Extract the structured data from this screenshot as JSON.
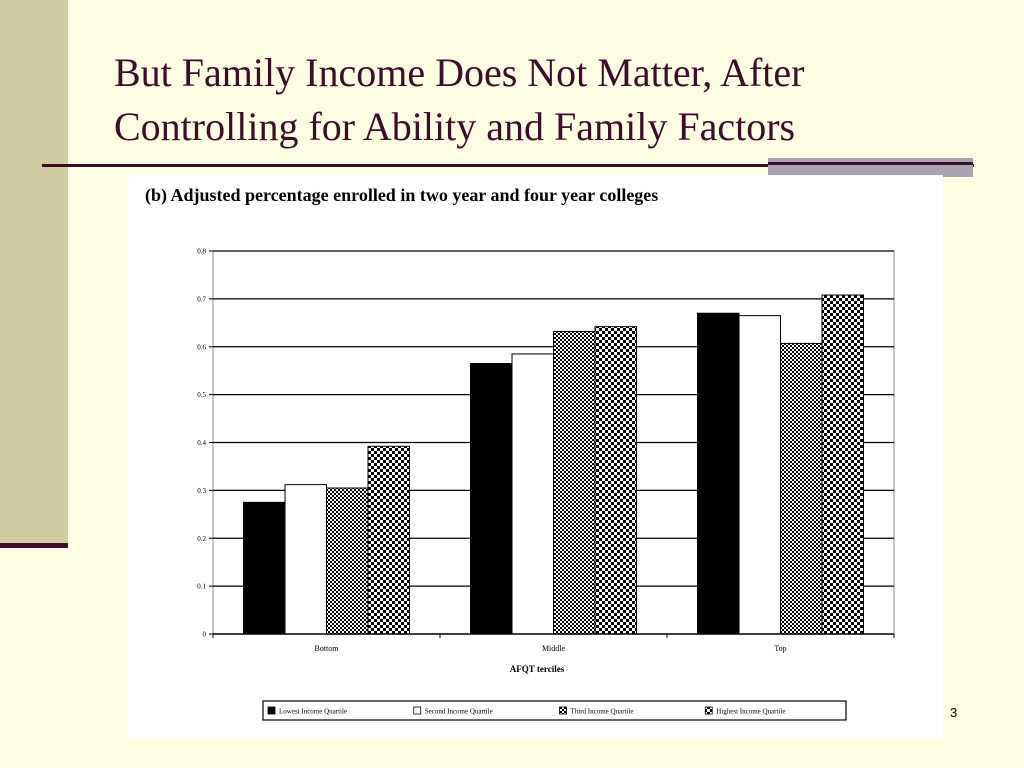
{
  "slide": {
    "title_line1": "But Family Income Does Not Matter, After",
    "title_line2": "Controlling for Ability and Family Factors",
    "slide_number": "3"
  },
  "colors": {
    "title": "#3F0B2B",
    "background": "#FEFEE2",
    "left_bar": "#CDCD9F"
  },
  "chart_data": {
    "type": "bar",
    "title": "(b) Adjusted percentage enrolled in two year and four year colleges",
    "xlabel": "AFQT terciles",
    "ylabel": "",
    "categories": [
      "Bottom",
      "Middle",
      "Top"
    ],
    "ylim": [
      0,
      0.8
    ],
    "yticks": [
      "0",
      "0.1",
      "0.2",
      "0.3",
      "0.4",
      "0.5",
      "0.6",
      "0.7",
      "0.8"
    ],
    "grid": true,
    "legend_position": "bottom",
    "series": [
      {
        "name": "Lowest Income Quartile",
        "values": [
          0.275,
          0.565,
          0.67
        ],
        "pattern": "solid-black"
      },
      {
        "name": "Second Income Quartile",
        "values": [
          0.312,
          0.585,
          0.665
        ],
        "pattern": "white"
      },
      {
        "name": "Third Income Quartile",
        "values": [
          0.305,
          0.632,
          0.607
        ],
        "pattern": "fine-checker"
      },
      {
        "name": "Highest Income Quartile",
        "values": [
          0.392,
          0.642,
          0.708
        ],
        "pattern": "coarse-checker"
      }
    ]
  }
}
